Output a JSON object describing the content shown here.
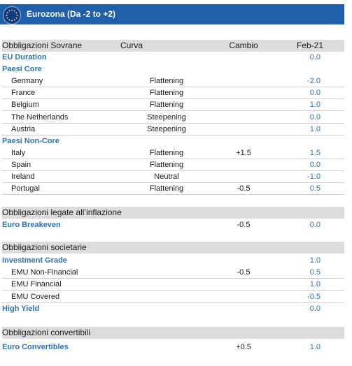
{
  "header": {
    "title": "Eurozona (Da -2 to +2)"
  },
  "columns": {
    "name": "Obbligazioni Sovrane",
    "curve": "Curva",
    "change": "Cambio",
    "feb": "Feb-21"
  },
  "sovereign": [
    {
      "label": "EU Duration",
      "type": "group",
      "curve": "",
      "change": "",
      "feb": "0.0"
    },
    {
      "label": "Paesi Core",
      "type": "group",
      "curve": "",
      "change": "",
      "feb": ""
    },
    {
      "label": "Germany",
      "type": "sub",
      "curve": "Flattening",
      "change": "",
      "feb": "-2.0"
    },
    {
      "label": "France",
      "type": "sub",
      "curve": "Flattening",
      "change": "",
      "feb": "0.0"
    },
    {
      "label": "Belgium",
      "type": "sub",
      "curve": "Flattening",
      "change": "",
      "feb": "1.0"
    },
    {
      "label": "The Netherlands",
      "type": "sub",
      "curve": "Steepening",
      "change": "",
      "feb": "0.0"
    },
    {
      "label": "Austria",
      "type": "sub",
      "curve": "Steepening",
      "change": "",
      "feb": "1.0"
    },
    {
      "label": "Paesi Non-Core",
      "type": "group",
      "curve": "",
      "change": "",
      "feb": ""
    },
    {
      "label": "Italy",
      "type": "sub",
      "curve": "Flattening",
      "change": "+1.5",
      "feb": "1.5"
    },
    {
      "label": "Spain",
      "type": "sub",
      "curve": "Flattening",
      "change": "",
      "feb": "0.0"
    },
    {
      "label": "Ireland",
      "type": "sub",
      "curve": "Neutral",
      "change": "",
      "feb": "-1.0"
    },
    {
      "label": "Portugal",
      "type": "sub",
      "curve": "Flattening",
      "change": "-0.5",
      "feb": "0.5"
    }
  ],
  "inflation": {
    "heading": "Obbligazioni legate all’inflazione",
    "rows": [
      {
        "label": "Euro Breakeven",
        "type": "group",
        "change": "-0.5",
        "feb": "0.0"
      }
    ]
  },
  "corporate": {
    "heading": "Obbligazioni societarie",
    "rows": [
      {
        "label": "Investment Grade",
        "type": "group",
        "change": "",
        "feb": "1.0"
      },
      {
        "label": "EMU Non-Financial",
        "type": "sub",
        "change": "-0.5",
        "feb": "0.5"
      },
      {
        "label": "EMU Financial",
        "type": "sub",
        "change": "",
        "feb": "1.0"
      },
      {
        "label": "EMU Covered",
        "type": "sub",
        "change": "",
        "feb": "-0.5"
      },
      {
        "label": "High Yield",
        "type": "group",
        "change": "",
        "feb": "0.0"
      }
    ]
  },
  "convertible": {
    "heading": "Obbligazioni convertibili",
    "rows": [
      {
        "label": "Euro Convertibles",
        "type": "group",
        "change": "+0.5",
        "feb": "1.0"
      }
    ]
  }
}
